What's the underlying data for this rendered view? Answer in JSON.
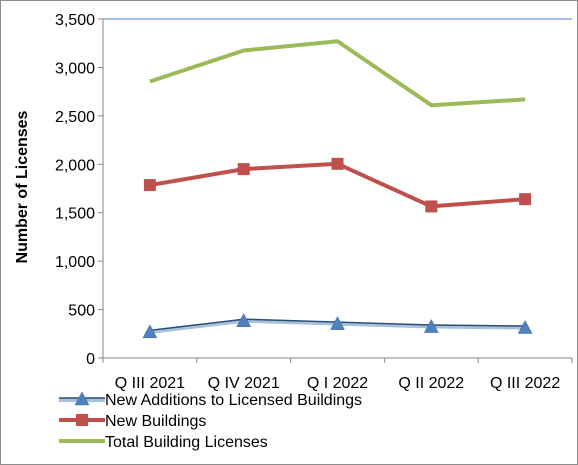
{
  "chart_data": {
    "type": "line",
    "categories": [
      "Q III 2021",
      "Q IV 2021",
      "Q I 2022",
      "Q II 2022",
      "Q III 2022"
    ],
    "ylabel": "Number of Licenses",
    "ylim": [
      0,
      3500
    ],
    "yticks": [
      0,
      500,
      1000,
      1500,
      2000,
      2500,
      3000,
      3500
    ],
    "ytick_labels": [
      "0",
      "500",
      "1,000",
      "1,500",
      "2,000",
      "2,500",
      "3,000",
      "3,500"
    ],
    "grid": false,
    "legend_position": "bottom",
    "series": [
      {
        "name": "New Additions to Licensed Buildings",
        "values": [
          270,
          385,
          355,
          325,
          315
        ],
        "color": "#4f81bd",
        "marker": "triangle"
      },
      {
        "name": "New Buildings",
        "values": [
          1785,
          1950,
          2005,
          1565,
          1640
        ],
        "color": "#c0504d",
        "marker": "square"
      },
      {
        "name": "Total Building Licenses",
        "values": [
          2855,
          3175,
          3270,
          2610,
          2670
        ],
        "color": "#9bbb59",
        "marker": "none"
      }
    ]
  }
}
